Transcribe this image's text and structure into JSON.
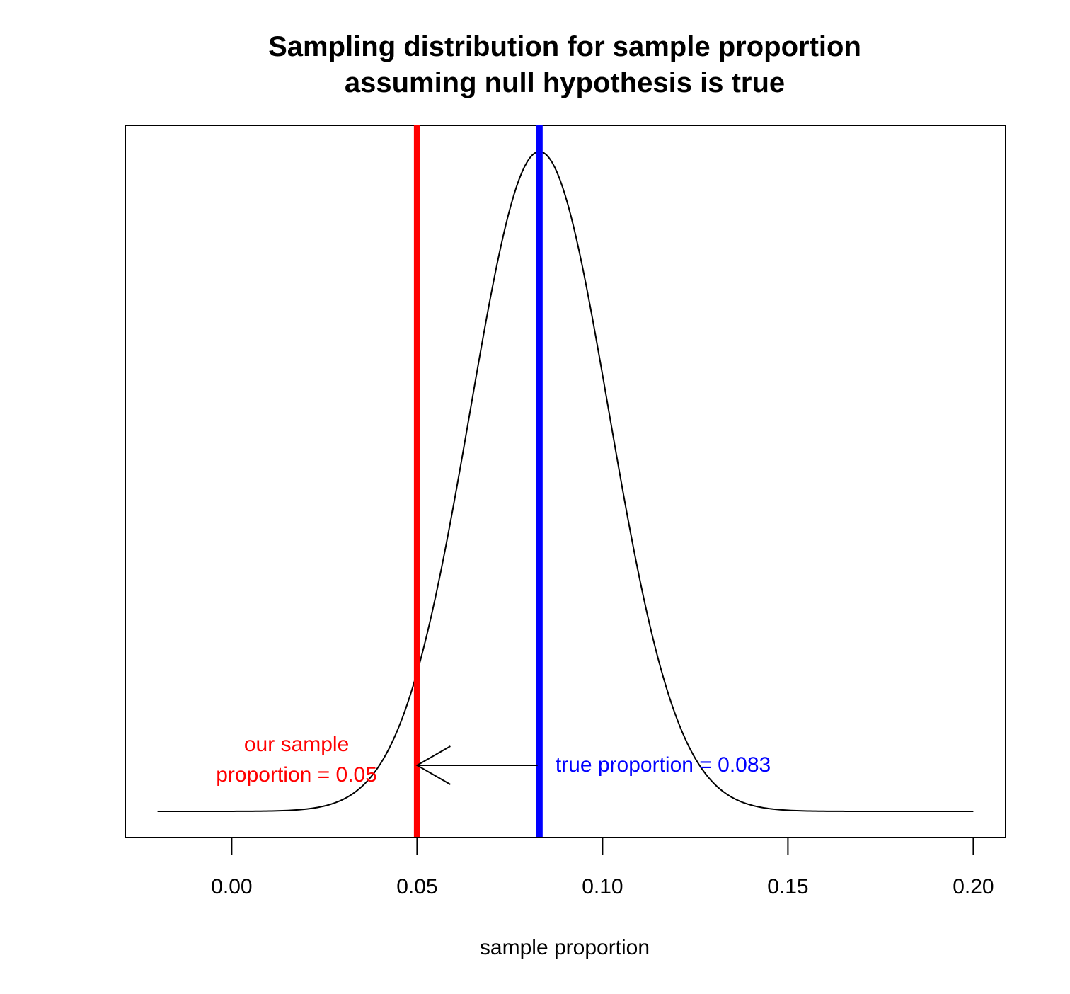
{
  "chart_data": {
    "type": "line",
    "title": "Sampling distribution for sample proportion",
    "subtitle": "assuming null hypothesis is true",
    "xlabel": "sample proportion",
    "ylabel": "",
    "xlim": [
      -0.0287,
      0.2087
    ],
    "x_ticks": [
      0.0,
      0.05,
      0.1,
      0.15,
      0.2
    ],
    "x_tick_labels": [
      "0.00",
      "0.05",
      "0.10",
      "0.15",
      "0.20"
    ],
    "y_axis_shown": false,
    "grid": false,
    "curve": {
      "distribution": "normal",
      "mean": 0.083,
      "sd": 0.0187,
      "x_range": [
        -0.02,
        0.2
      ]
    },
    "vlines": [
      {
        "x": 0.05,
        "color": "#ff0000"
      },
      {
        "x": 0.083,
        "color": "#0000ff"
      }
    ],
    "annotations": [
      {
        "lines": [
          "our sample",
          "proportion = 0.05"
        ],
        "x": 0.0175,
        "color": "#ff0000"
      },
      {
        "lines": [
          "true proportion = 0.083"
        ],
        "x": 0.0873,
        "color": "#0000ff"
      }
    ],
    "arrow": {
      "from_x": 0.0825,
      "to_x": 0.05
    }
  }
}
